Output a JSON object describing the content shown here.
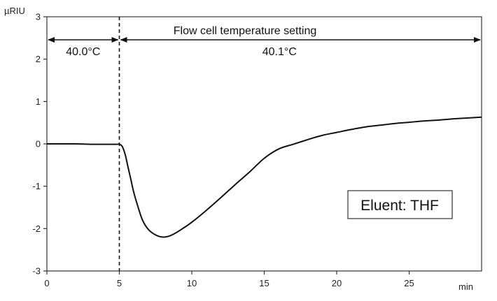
{
  "chart_data": {
    "type": "line",
    "title": "",
    "xlabel": "min",
    "ylabel": "µRIU",
    "xlim": [
      0,
      30
    ],
    "ylim": [
      -3,
      3
    ],
    "xticks": [
      0,
      5,
      10,
      15,
      20,
      25
    ],
    "yticks": [
      3,
      2,
      1,
      0,
      -1,
      -2,
      -3
    ],
    "grid": false,
    "legend": "none",
    "colors": {
      "line": "#111111",
      "axes": "#333333"
    },
    "series": [
      {
        "x": [
          0,
          1,
          2,
          3,
          4,
          4.8,
          5.0,
          5.2,
          5.4,
          5.6,
          5.8,
          6.0,
          6.3,
          6.6,
          7.0,
          7.5,
          8.0,
          8.5,
          9.0,
          9.5,
          10.0,
          11.0,
          12.0,
          13.0,
          14.0,
          15.0,
          16.0,
          17.0,
          18.0,
          19.0,
          20.0,
          21.0,
          22.0,
          23.0,
          24.0,
          25.0,
          26.0,
          27.0,
          28.0,
          29.0,
          30.0
        ],
        "y": [
          0,
          0,
          0,
          -0.01,
          -0.01,
          -0.01,
          -0.01,
          -0.06,
          -0.25,
          -0.55,
          -0.85,
          -1.15,
          -1.5,
          -1.8,
          -2.02,
          -2.15,
          -2.2,
          -2.17,
          -2.08,
          -1.97,
          -1.85,
          -1.57,
          -1.27,
          -0.96,
          -0.66,
          -0.34,
          -0.12,
          -0.01,
          0.1,
          0.2,
          0.27,
          0.34,
          0.4,
          0.44,
          0.48,
          0.51,
          0.54,
          0.56,
          0.59,
          0.61,
          0.63
        ]
      }
    ],
    "annotations": {
      "setting_label": "Flow cell temperature setting",
      "segment_left": "40.0°C",
      "segment_right": "40.1°C",
      "change_time": 5,
      "box_text": "Eluent: THF"
    }
  }
}
